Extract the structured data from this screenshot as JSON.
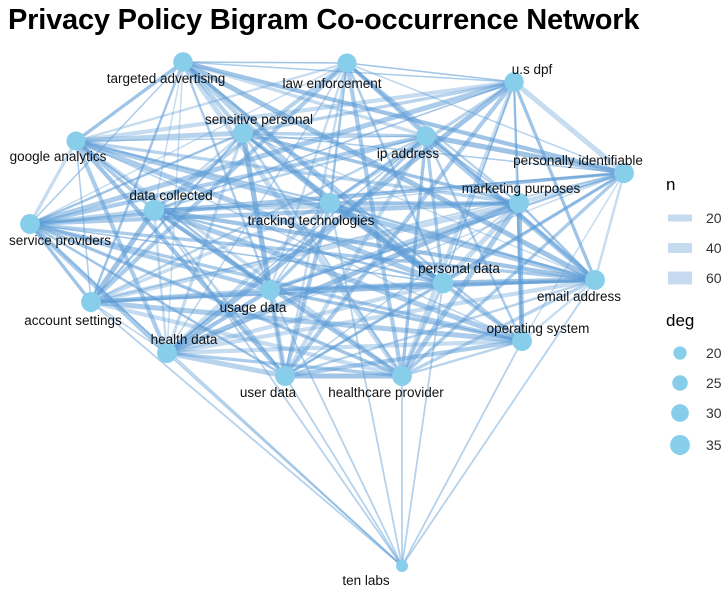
{
  "title": "Privacy Policy Bigram Co-occurrence Network",
  "colors": {
    "node": "#87CEEB",
    "edge": "#5B9BD5",
    "legend_key": "#C6DBEF"
  },
  "chart_data": {
    "type": "network",
    "nodes": [
      {
        "id": "targeted advertising",
        "deg": 34
      },
      {
        "id": "law enforcement",
        "deg": 33
      },
      {
        "id": "u.s dpf",
        "deg": 34
      },
      {
        "id": "sensitive personal",
        "deg": 35
      },
      {
        "id": "google analytics",
        "deg": 33
      },
      {
        "id": "ip address",
        "deg": 34
      },
      {
        "id": "personally identifiable",
        "deg": 35
      },
      {
        "id": "marketing purposes",
        "deg": 35
      },
      {
        "id": "data collected",
        "deg": 36
      },
      {
        "id": "tracking technologies",
        "deg": 36
      },
      {
        "id": "service providers",
        "deg": 35
      },
      {
        "id": "personal data",
        "deg": 37
      },
      {
        "id": "email address",
        "deg": 35
      },
      {
        "id": "usage data",
        "deg": 35
      },
      {
        "id": "account settings",
        "deg": 35
      },
      {
        "id": "operating system",
        "deg": 35
      },
      {
        "id": "health data",
        "deg": 35
      },
      {
        "id": "user data",
        "deg": 35
      },
      {
        "id": "healthcare provider",
        "deg": 35
      },
      {
        "id": "ten labs",
        "deg": 17
      }
    ],
    "ten_labs_links": [
      "account settings",
      "health data",
      "user data",
      "healthcare provider",
      "usage data",
      "personal data",
      "operating system",
      "email address",
      "tracking technologies",
      "data collected",
      "service providers"
    ],
    "legend": {
      "n": {
        "title": "n",
        "values": [
          20,
          40,
          60
        ]
      },
      "deg": {
        "title": "deg",
        "values": [
          20,
          25,
          30,
          35
        ]
      }
    }
  }
}
